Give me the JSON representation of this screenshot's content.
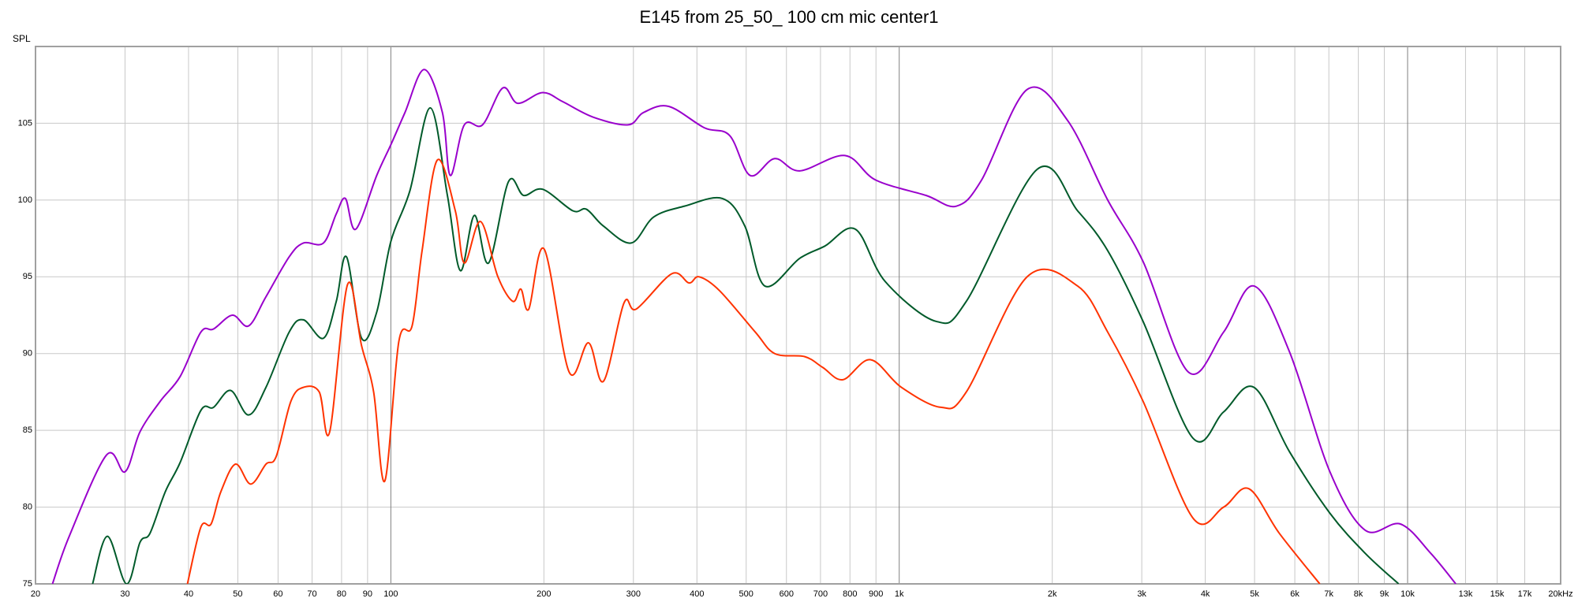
{
  "chart_data": {
    "type": "line",
    "title": "E145 from 25_50_ 100 cm mic center1",
    "y_label": "SPL",
    "xscale": "log",
    "grid": true,
    "xlim": [
      20,
      20000
    ],
    "ylim": [
      75,
      110
    ],
    "yticks": [
      75,
      80,
      85,
      90,
      95,
      100,
      105
    ],
    "xticks": [
      20,
      30,
      40,
      50,
      60,
      70,
      80,
      90,
      100,
      200,
      300,
      400,
      500,
      600,
      700,
      800,
      900,
      {
        "value": 1000,
        "label": "1k"
      },
      {
        "value": 2000,
        "label": "2k"
      },
      {
        "value": 3000,
        "label": "3k"
      },
      {
        "value": 4000,
        "label": "4k"
      },
      {
        "value": 5000,
        "label": "5k"
      },
      {
        "value": 6000,
        "label": "6k"
      },
      {
        "value": 7000,
        "label": "7k"
      },
      {
        "value": 8000,
        "label": "8k"
      },
      {
        "value": 9000,
        "label": "9k"
      },
      {
        "value": 10000,
        "label": "10k"
      },
      {
        "value": 13000,
        "label": "13k"
      },
      {
        "value": 15000,
        "label": "15k"
      },
      {
        "value": 17000,
        "label": "17k"
      },
      {
        "value": 20000,
        "label": "20kHz"
      }
    ],
    "series": [
      {
        "color": "#9900cc",
        "x": [
          21.6,
          23.3,
          27.6,
          30,
          32.1,
          35.2,
          38.5,
          42.3,
          44.8,
          48.8,
          52.5,
          56.8,
          63.1,
          67.3,
          73.7,
          78.1,
          81.4,
          85.3,
          93.8,
          100,
          106.6,
          116.3,
          126.3,
          130.9,
          139.5,
          151.5,
          166,
          177.7,
          198.9,
          218,
          250,
          293,
          314,
          352,
          414,
          464,
          509,
          569,
          637,
          782,
          899,
          1129,
          1295,
          1452,
          1785,
          2142,
          2571,
          3017,
          3704,
          4346,
          4988,
          5859,
          7034,
          8248,
          9680,
          11100,
          12440
        ],
        "values": [
          75,
          78.1,
          83.4,
          82.3,
          84.9,
          86.9,
          88.5,
          91.4,
          91.6,
          92.5,
          91.8,
          93.7,
          96.3,
          97.2,
          97.2,
          99.1,
          100.1,
          98.1,
          101.6,
          103.6,
          105.7,
          108.5,
          105.7,
          101.6,
          104.9,
          104.9,
          107.3,
          106.3,
          107,
          106.4,
          105.4,
          104.9,
          105.7,
          106.1,
          104.7,
          104.2,
          101.6,
          102.7,
          101.9,
          102.9,
          101.3,
          100.3,
          99.6,
          101.3,
          107.2,
          105.2,
          100,
          96,
          88.8,
          91.4,
          94.4,
          90.1,
          82.3,
          78.5,
          78.9,
          77,
          75
        ]
      },
      {
        "color": "#005a2a",
        "x": [
          25.9,
          27.7,
          30.2,
          32.1,
          33.6,
          36,
          38.5,
          42.3,
          44.8,
          48.4,
          52.5,
          56.8,
          63.1,
          67.3,
          73.7,
          78.1,
          81.8,
          87.6,
          93.8,
          100,
          109,
          119.6,
          129.2,
          137,
          146,
          155.7,
          170.4,
          182.4,
          198.9,
          228,
          242.5,
          262,
          297,
          329,
          378,
          449,
          497,
          544,
          637,
          714,
          820,
          938,
          1181,
          1355,
          1868,
          2243,
          2571,
          3017,
          3780,
          4346,
          4988,
          5859,
          7034,
          8248,
          9600
        ],
        "values": [
          75,
          78.1,
          75,
          77.7,
          78.3,
          81,
          82.9,
          86.3,
          86.5,
          87.6,
          86,
          87.8,
          91.4,
          92.2,
          91,
          93.4,
          96.3,
          91,
          92.7,
          97.3,
          100.6,
          106,
          100.3,
          95.4,
          99,
          95.9,
          101.2,
          100.3,
          100.7,
          99.3,
          99.4,
          98.3,
          97.2,
          98.9,
          99.6,
          100.1,
          98.3,
          94.4,
          96.2,
          97,
          98.1,
          94.7,
          92.1,
          93.4,
          102,
          99.3,
          96.7,
          92.1,
          84.5,
          86.2,
          87.8,
          83.6,
          79.6,
          77,
          75
        ]
      },
      {
        "color": "#ff3300",
        "x": [
          39.8,
          42.3,
          44.3,
          46.3,
          49.5,
          53,
          56.8,
          59.5,
          63.6,
          67.3,
          72.3,
          75.8,
          82.2,
          87.6,
          92.5,
          97.3,
          103.7,
          110.1,
          115.2,
          123.4,
          133.9,
          139.5,
          150.1,
          162.4,
          173.8,
          180.2,
          186.8,
          200.3,
          224.2,
          244.8,
          262,
          287.5,
          304,
          357,
          386,
          404,
          443,
          521,
          569,
          652,
          707,
          775,
          878,
          1010,
          1208,
          1355,
          1785,
          2243,
          2571,
          3017,
          3780,
          4346,
          4871,
          5591,
          6718
        ],
        "values": [
          75,
          78.7,
          78.9,
          81,
          82.8,
          81.5,
          82.8,
          83.3,
          86.9,
          87.8,
          87.5,
          84.9,
          94.5,
          90.5,
          87.5,
          81.7,
          90.8,
          91.8,
          96.7,
          102.6,
          99.3,
          95.9,
          98.6,
          95,
          93.4,
          94.2,
          92.9,
          96.8,
          88.8,
          90.7,
          88.2,
          93.3,
          92.9,
          95.2,
          94.6,
          95,
          94.1,
          91.4,
          90,
          89.8,
          89.1,
          88.3,
          89.6,
          87.8,
          86.5,
          87.5,
          95,
          94.4,
          91.4,
          86.9,
          79.3,
          80,
          81.2,
          78.3,
          75
        ]
      }
    ]
  }
}
